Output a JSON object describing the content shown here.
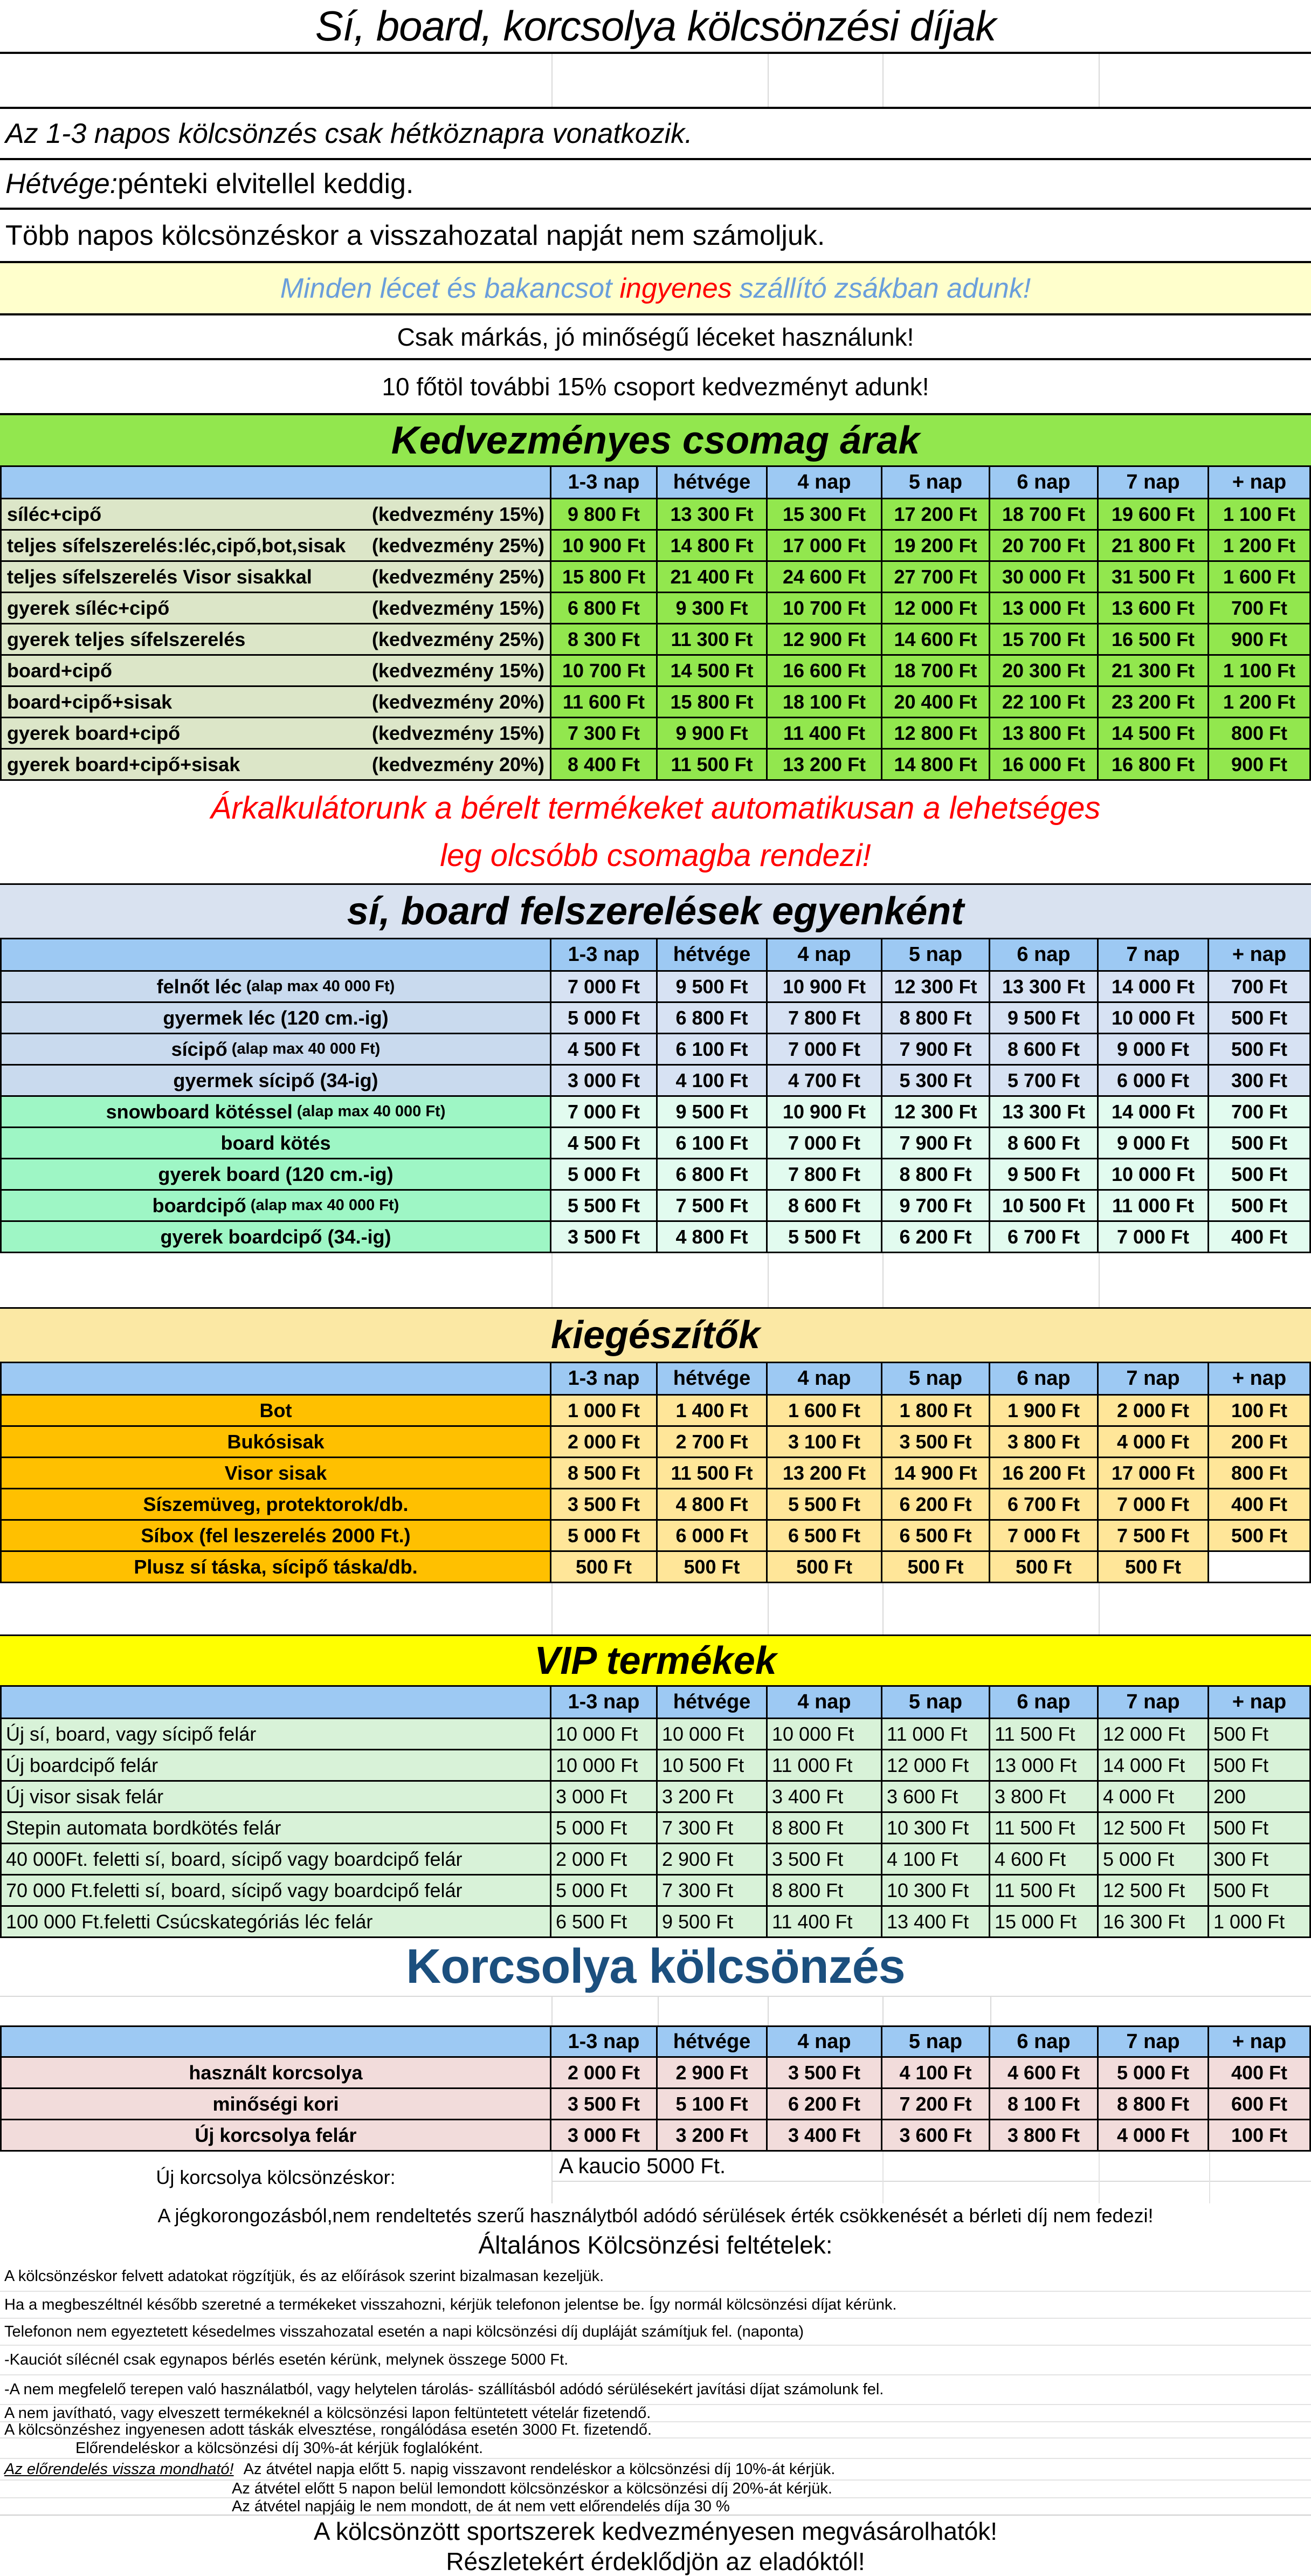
{
  "page": {
    "title": "Sí, board, korcsolya kölcsönzési díjak"
  },
  "top_notes": {
    "note1": "Az 1-3 napos kölcsönzés csak hétköznapra vonatkozik.",
    "note2_lead": "Hétvége:",
    "note2_rest": " pénteki elvitellel keddig.",
    "note3": "Több napos kölcsönzéskor a visszahozatal napját nem számoljuk.",
    "promo_part1": "Minden lécet és bakancsot",
    "promo_highlight": "ingyenes",
    "promo_part2": "szállító zsákban adunk!",
    "note4": "Csak márkás, jó minőségű léceket használunk!",
    "note5": "10 főtöl további 15% csoport kedvezményt adunk!"
  },
  "columns": [
    "1-3 nap",
    "hétvége",
    "4 nap",
    "5 nap",
    "6 nap",
    "7 nap",
    "+ nap"
  ],
  "tables": {
    "csomag": {
      "title": "Kedvezményes csomag árak",
      "rows": [
        {
          "label": "síléc+cipő",
          "discount": "(kedvezmény 15%)",
          "values": [
            "9 800 Ft",
            "13 300 Ft",
            "15 300 Ft",
            "17 200 Ft",
            "18 700 Ft",
            "19 600 Ft",
            "1 100 Ft"
          ]
        },
        {
          "label": "teljes sífelszerelés:léc,cipő,bot,sisak",
          "discount": "(kedvezmény 25%)",
          "values": [
            "10 900 Ft",
            "14 800 Ft",
            "17 000 Ft",
            "19 200 Ft",
            "20 700 Ft",
            "21 800 Ft",
            "1 200 Ft"
          ]
        },
        {
          "label": "teljes sífelszerelés Visor sisakkal",
          "discount": "(kedvezmény 25%)",
          "values": [
            "15 800 Ft",
            "21 400 Ft",
            "24 600 Ft",
            "27 700 Ft",
            "30 000 Ft",
            "31 500 Ft",
            "1 600 Ft"
          ]
        },
        {
          "label": "gyerek síléc+cipő",
          "discount": "(kedvezmény 15%)",
          "values": [
            "6 800 Ft",
            "9 300 Ft",
            "10 700 Ft",
            "12 000 Ft",
            "13 000 Ft",
            "13 600 Ft",
            "700 Ft"
          ]
        },
        {
          "label": "gyerek teljes sífelszerelés",
          "discount": "(kedvezmény 25%)",
          "values": [
            "8 300 Ft",
            "11 300 Ft",
            "12 900 Ft",
            "14 600 Ft",
            "15 700 Ft",
            "16 500 Ft",
            "900 Ft"
          ]
        },
        {
          "label": "board+cipő",
          "discount": "(kedvezmény 15%)",
          "values": [
            "10 700 Ft",
            "14 500 Ft",
            "16 600 Ft",
            "18 700 Ft",
            "20 300 Ft",
            "21 300 Ft",
            "1 100 Ft"
          ]
        },
        {
          "label": "board+cipő+sisak",
          "discount": "(kedvezmény 20%)",
          "values": [
            "11 600 Ft",
            "15 800 Ft",
            "18 100 Ft",
            "20 400 Ft",
            "22 100 Ft",
            "23 200 Ft",
            "1 200 Ft"
          ]
        },
        {
          "label": "gyerek board+cipő",
          "discount": "(kedvezmény 15%)",
          "values": [
            "7 300 Ft",
            "9 900 Ft",
            "11 400 Ft",
            "12 800 Ft",
            "13 800 Ft",
            "14 500 Ft",
            "800 Ft"
          ]
        },
        {
          "label": "gyerek board+cipő+sisak",
          "discount": "(kedvezmény 20%)",
          "values": [
            "8 400 Ft",
            "11 500 Ft",
            "13 200 Ft",
            "14 800 Ft",
            "16 000 Ft",
            "16 800 Ft",
            "900 Ft"
          ]
        }
      ]
    },
    "calc_note": {
      "line1": "Árkalkulátorunk a bérelt termékeket automatikusan a lehetséges",
      "line2": "leg olcsóbb csomagba rendezi!"
    },
    "egyenkent": {
      "title": "sí, board felszerelések egyenként",
      "rows": [
        {
          "label": "felnőt léc",
          "sub": "(alap max 40 000 Ft)",
          "kind": "ski",
          "values": [
            "7 000 Ft",
            "9 500 Ft",
            "10 900 Ft",
            "12 300 Ft",
            "13 300 Ft",
            "14 000 Ft",
            "700 Ft"
          ]
        },
        {
          "label": "gyermek léc (120 cm.-ig)",
          "sub": "",
          "kind": "ski",
          "values": [
            "5 000 Ft",
            "6 800 Ft",
            "7 800 Ft",
            "8 800 Ft",
            "9 500 Ft",
            "10 000 Ft",
            "500 Ft"
          ]
        },
        {
          "label": "sícipő",
          "sub": "(alap max 40 000 Ft)",
          "kind": "ski",
          "values": [
            "4 500 Ft",
            "6 100 Ft",
            "7 000 Ft",
            "7 900 Ft",
            "8 600 Ft",
            "9 000 Ft",
            "500 Ft"
          ]
        },
        {
          "label": "gyermek sícipő (34-ig)",
          "sub": "",
          "kind": "ski",
          "values": [
            "3 000 Ft",
            "4 100 Ft",
            "4 700 Ft",
            "5 300 Ft",
            "5 700 Ft",
            "6 000 Ft",
            "300 Ft"
          ]
        },
        {
          "label": "snowboard kötéssel",
          "sub": "(alap max 40 000 Ft)",
          "kind": "board",
          "values": [
            "7 000 Ft",
            "9 500 Ft",
            "10 900 Ft",
            "12 300 Ft",
            "13 300 Ft",
            "14 000 Ft",
            "700 Ft"
          ]
        },
        {
          "label": "board kötés",
          "sub": "",
          "kind": "board",
          "values": [
            "4 500 Ft",
            "6 100 Ft",
            "7 000 Ft",
            "7 900 Ft",
            "8 600 Ft",
            "9 000 Ft",
            "500 Ft"
          ]
        },
        {
          "label": "gyerek board (120 cm.-ig)",
          "sub": "",
          "kind": "board",
          "values": [
            "5 000 Ft",
            "6 800 Ft",
            "7 800 Ft",
            "8 800 Ft",
            "9 500 Ft",
            "10 000 Ft",
            "500 Ft"
          ]
        },
        {
          "label": "boardcipő",
          "sub": "(alap max 40 000 Ft)",
          "kind": "board",
          "values": [
            "5 500 Ft",
            "7 500 Ft",
            "8 600 Ft",
            "9 700 Ft",
            "10 500 Ft",
            "11 000 Ft",
            "500 Ft"
          ]
        },
        {
          "label": "gyerek boardcipő (34.-ig)",
          "sub": "",
          "kind": "board",
          "values": [
            "3 500 Ft",
            "4 800 Ft",
            "5 500 Ft",
            "6 200 Ft",
            "6 700 Ft",
            "7 000 Ft",
            "400 Ft"
          ]
        }
      ]
    },
    "kiegeszitok": {
      "title": "kiegészítők",
      "rows": [
        {
          "label": "Bot",
          "values": [
            "1 000 Ft",
            "1 400 Ft",
            "1 600 Ft",
            "1 800 Ft",
            "1 900 Ft",
            "2 000 Ft",
            "100 Ft"
          ]
        },
        {
          "label": "Bukósisak",
          "values": [
            "2 000 Ft",
            "2 700 Ft",
            "3 100 Ft",
            "3 500 Ft",
            "3 800 Ft",
            "4 000 Ft",
            "200 Ft"
          ]
        },
        {
          "label": "Visor sisak",
          "values": [
            "8 500 Ft",
            "11 500 Ft",
            "13 200 Ft",
            "14 900 Ft",
            "16 200 Ft",
            "17 000 Ft",
            "800 Ft"
          ]
        },
        {
          "label": "Síszemüveg, protektorok/db.",
          "values": [
            "3 500 Ft",
            "4 800 Ft",
            "5 500 Ft",
            "6 200 Ft",
            "6 700 Ft",
            "7 000 Ft",
            "400 Ft"
          ]
        },
        {
          "label": "Síbox (fel leszerelés 2000 Ft.)",
          "values": [
            "5 000 Ft",
            "6 000 Ft",
            "6 500 Ft",
            "6 500 Ft",
            "7 000 Ft",
            "7 500 Ft",
            "500 Ft"
          ]
        },
        {
          "label": "Plusz sí táska, sícipő táska/db.",
          "values": [
            "500 Ft",
            "500 Ft",
            "500 Ft",
            "500 Ft",
            "500 Ft",
            "500 Ft",
            ""
          ]
        }
      ]
    },
    "vip": {
      "title": "VIP termékek",
      "rows": [
        {
          "label": "Új sí, board, vagy sícipő felár",
          "values": [
            "10 000 Ft",
            "10 000 Ft",
            "10 000 Ft",
            "11 000 Ft",
            "11 500 Ft",
            "12 000 Ft",
            "500 Ft"
          ]
        },
        {
          "label": "Új boardcipő felár",
          "values": [
            "10 000 Ft",
            "10 500 Ft",
            "11 000 Ft",
            "12 000 Ft",
            "13 000 Ft",
            "14 000 Ft",
            "500 Ft"
          ]
        },
        {
          "label": "Új visor sisak felár",
          "values": [
            "3 000 Ft",
            "3 200 Ft",
            "3 400 Ft",
            "3 600 Ft",
            "3 800 Ft",
            "4 000 Ft",
            "200"
          ]
        },
        {
          "label": "Stepin automata bordkötés felár",
          "values": [
            "5 000 Ft",
            "7 300 Ft",
            "8 800 Ft",
            "10 300 Ft",
            "11 500 Ft",
            "12 500 Ft",
            "500 Ft"
          ]
        },
        {
          "label": "40 000Ft. feletti sí, board, sícipő vagy boardcipő  felár",
          "values": [
            "2 000 Ft",
            "2 900 Ft",
            "3 500 Ft",
            "4 100 Ft",
            "4 600 Ft",
            "5 000 Ft",
            "300 Ft"
          ]
        },
        {
          "label": "70 000 Ft.feletti sí, board, sícipő vagy boardcipő  felár",
          "values": [
            "5 000 Ft",
            "7 300 Ft",
            "8 800 Ft",
            "10 300 Ft",
            "11 500 Ft",
            "12 500 Ft",
            "500 Ft"
          ]
        },
        {
          "label": "100 000 Ft.feletti Csúcskategóriás léc felár",
          "values": [
            "6 500 Ft",
            "9 500 Ft",
            "11 400 Ft",
            "13 400 Ft",
            "15 000 Ft",
            "16 300 Ft",
            "1 000 Ft"
          ]
        }
      ]
    },
    "korcsolya": {
      "heading": "Korcsolya kölcsönzés",
      "rows": [
        {
          "label": "használt korcsolya",
          "values": [
            "2 000 Ft",
            "2 900 Ft",
            "3 500 Ft",
            "4 100 Ft",
            "4 600 Ft",
            "5 000 Ft",
            "400 Ft"
          ]
        },
        {
          "label": "minőségi kori",
          "values": [
            "3 500 Ft",
            "5 100 Ft",
            "6 200 Ft",
            "7 200 Ft",
            "8 100 Ft",
            "8 800 Ft",
            "600 Ft"
          ]
        },
        {
          "label": "Új korcsolya felár",
          "values": [
            "3 000 Ft",
            "3 200 Ft",
            "3 400 Ft",
            "3 600 Ft",
            "3 800 Ft",
            "4 000 Ft",
            "100 Ft"
          ]
        }
      ],
      "new_skate_label": "Új korcsolya kölcsönzéskor:",
      "deposit_note": "A kaucio 5000 Ft."
    }
  },
  "footer": {
    "damage_note": "A jégkorongozásból,nem rendeltetés szerű használytból adódó sérülések érték csökkenését a bérleti díj nem fedezi!",
    "terms_title": "Általános Kölcsönzési feltételek:",
    "conditions": [
      "A kölcsönzéskor felvett adatokat rögzítjük, és az előírások szerint bizalmasan kezeljük.",
      "Ha a megbeszéltnél később szeretné a termékeket visszahozni, kérjük telefonon jelentse be. Így normál kölcsönzési díjat kérünk.",
      "Telefonon nem egyeztetett késedelmes visszahozatal esetén a napi kölcsönzési díj dupláját számítjuk fel. (naponta)",
      "-Kauciót sílécnél csak egynapos bérlés esetén kérünk, melynek összege 5000 Ft.",
      "-A nem megfelelő terepen való használatból, vagy helytelen tárolás- szállításból adódó sérülésekért javítási díjat számolunk fel.",
      "A nem javítható, vagy elveszett termékeknél a kölcsönzési lapon feltüntetett vételár fizetendő.",
      "A kölcsönzéshez ingyenesen adott táskák elvesztése, rongálódása esetén 3000 Ft. fizetendő.",
      "Előrendeléskor a kölcsönzési díj 30%-át kérjük foglalóként.",
      "Az átvétel napja előtt 5. napig visszavont rendeléskor a kölcsönzési díj 10%-át kérjük.",
      "Az átvétel előtt 5 napon belül lemondott kölcsönzéskor a kölcsönzési díj 20%-át kérjük.",
      "Az átvétel napjáig le nem mondott, de át nem vett előrendelés díja 30 %"
    ],
    "cond9_underlined": "Az előrendelés vissza mondható!",
    "closing1": "A kölcsönzött sportszerek kedvezményesen megvásárolhatók!",
    "closing2": "Részletekért érdeklődjön az eladóktól!"
  }
}
